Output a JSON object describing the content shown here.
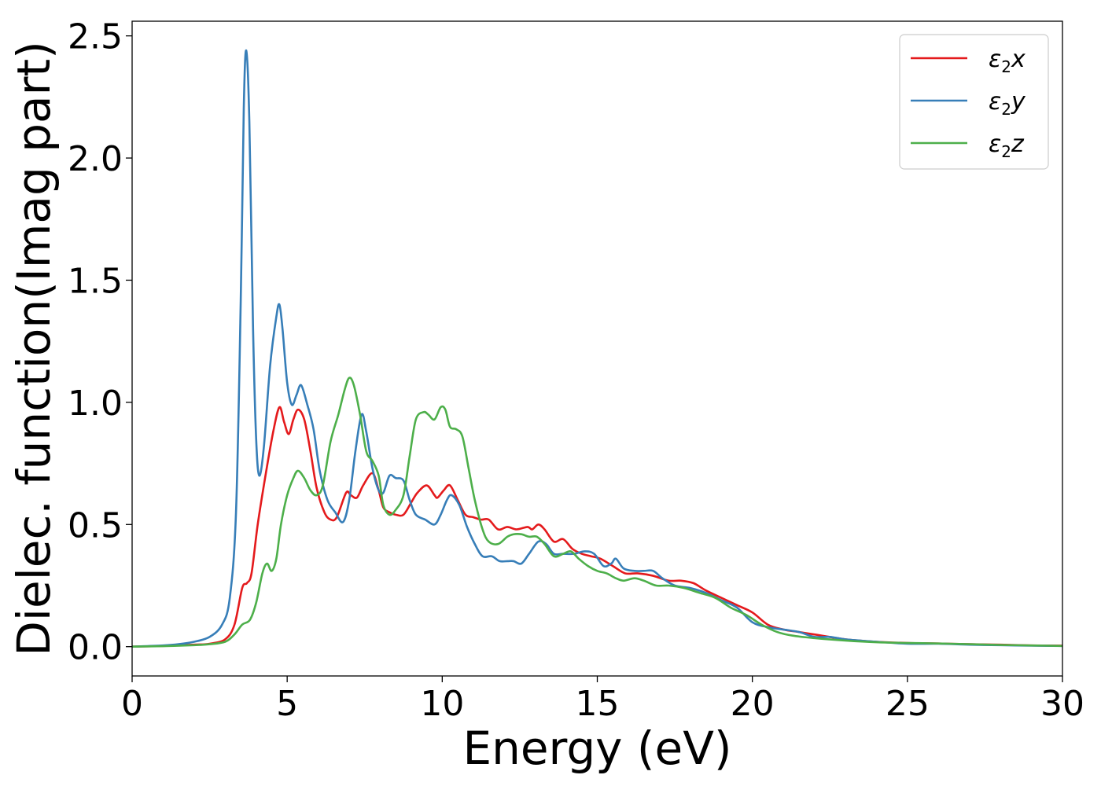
{
  "chart_data": {
    "type": "line",
    "title": "",
    "xlabel": "Energy (eV)",
    "ylabel": "Dielec. function(Imag part)",
    "xlim": [
      0,
      30
    ],
    "ylim": [
      -0.12,
      2.56
    ],
    "xticks": [
      0,
      5,
      10,
      15,
      20,
      25,
      30
    ],
    "xtick_labels": [
      "0",
      "5",
      "10",
      "15",
      "20",
      "25",
      "30"
    ],
    "yticks": [
      0.0,
      0.5,
      1.0,
      1.5,
      2.0,
      2.5
    ],
    "ytick_labels": [
      "0.0",
      "0.5",
      "1.0",
      "1.5",
      "2.0",
      "2.5"
    ],
    "grid": false,
    "legend_position": "top-right",
    "series": [
      {
        "name": "ε2x",
        "legend": {
          "symbol": "ε",
          "sub": "2",
          "var": "x"
        },
        "color": "#e41a1c",
        "points": [
          [
            0,
            0
          ],
          [
            1,
            0.003
          ],
          [
            2,
            0.008
          ],
          [
            2.5,
            0.012
          ],
          [
            3,
            0.03
          ],
          [
            3.3,
            0.09
          ],
          [
            3.55,
            0.24
          ],
          [
            3.7,
            0.26
          ],
          [
            3.85,
            0.3
          ],
          [
            4.05,
            0.5
          ],
          [
            4.3,
            0.7
          ],
          [
            4.55,
            0.88
          ],
          [
            4.75,
            0.98
          ],
          [
            4.9,
            0.92
          ],
          [
            5.05,
            0.87
          ],
          [
            5.2,
            0.93
          ],
          [
            5.35,
            0.97
          ],
          [
            5.55,
            0.93
          ],
          [
            5.75,
            0.8
          ],
          [
            5.95,
            0.65
          ],
          [
            6.2,
            0.55
          ],
          [
            6.4,
            0.52
          ],
          [
            6.6,
            0.53
          ],
          [
            6.9,
            0.63
          ],
          [
            7.05,
            0.62
          ],
          [
            7.25,
            0.61
          ],
          [
            7.45,
            0.66
          ],
          [
            7.75,
            0.71
          ],
          [
            7.95,
            0.64
          ],
          [
            8.1,
            0.57
          ],
          [
            8.3,
            0.55
          ],
          [
            8.5,
            0.54
          ],
          [
            8.75,
            0.54
          ],
          [
            9,
            0.59
          ],
          [
            9.2,
            0.63
          ],
          [
            9.5,
            0.66
          ],
          [
            9.75,
            0.62
          ],
          [
            9.85,
            0.61
          ],
          [
            10.05,
            0.64
          ],
          [
            10.25,
            0.66
          ],
          [
            10.5,
            0.6
          ],
          [
            10.75,
            0.54
          ],
          [
            11,
            0.53
          ],
          [
            11.25,
            0.52
          ],
          [
            11.5,
            0.52
          ],
          [
            11.8,
            0.48
          ],
          [
            12.1,
            0.49
          ],
          [
            12.4,
            0.48
          ],
          [
            12.75,
            0.49
          ],
          [
            12.9,
            0.48
          ],
          [
            13.1,
            0.5
          ],
          [
            13.3,
            0.48
          ],
          [
            13.6,
            0.43
          ],
          [
            13.9,
            0.44
          ],
          [
            14.2,
            0.4
          ],
          [
            14.5,
            0.38
          ],
          [
            14.8,
            0.37
          ],
          [
            15.1,
            0.36
          ],
          [
            15.5,
            0.33
          ],
          [
            15.9,
            0.3
          ],
          [
            16.3,
            0.3
          ],
          [
            16.8,
            0.29
          ],
          [
            17.3,
            0.27
          ],
          [
            17.7,
            0.27
          ],
          [
            18.1,
            0.26
          ],
          [
            18.5,
            0.23
          ],
          [
            19,
            0.2
          ],
          [
            19.5,
            0.17
          ],
          [
            20,
            0.14
          ],
          [
            20.5,
            0.09
          ],
          [
            21,
            0.07
          ],
          [
            21.5,
            0.06
          ],
          [
            22,
            0.05
          ],
          [
            23,
            0.03
          ],
          [
            24,
            0.02
          ],
          [
            25,
            0.015
          ],
          [
            26,
            0.013
          ],
          [
            27,
            0.01
          ],
          [
            28,
            0.008
          ],
          [
            29,
            0.005
          ],
          [
            30,
            0.004
          ]
        ]
      },
      {
        "name": "ε2y",
        "legend": {
          "symbol": "ε",
          "sub": "2",
          "var": "y"
        },
        "color": "#377eb8",
        "points": [
          [
            0,
            0
          ],
          [
            1,
            0.005
          ],
          [
            1.5,
            0.01
          ],
          [
            2,
            0.02
          ],
          [
            2.5,
            0.04
          ],
          [
            2.9,
            0.09
          ],
          [
            3.15,
            0.2
          ],
          [
            3.35,
            0.55
          ],
          [
            3.5,
            1.4
          ],
          [
            3.6,
            2.2
          ],
          [
            3.68,
            2.44
          ],
          [
            3.78,
            2.15
          ],
          [
            3.9,
            1.3
          ],
          [
            4.0,
            0.85
          ],
          [
            4.1,
            0.7
          ],
          [
            4.25,
            0.82
          ],
          [
            4.45,
            1.15
          ],
          [
            4.65,
            1.35
          ],
          [
            4.75,
            1.4
          ],
          [
            4.85,
            1.3
          ],
          [
            5.0,
            1.08
          ],
          [
            5.15,
            0.99
          ],
          [
            5.3,
            1.03
          ],
          [
            5.45,
            1.07
          ],
          [
            5.65,
            0.99
          ],
          [
            5.85,
            0.89
          ],
          [
            6.05,
            0.72
          ],
          [
            6.3,
            0.6
          ],
          [
            6.55,
            0.55
          ],
          [
            6.8,
            0.51
          ],
          [
            7.0,
            0.6
          ],
          [
            7.2,
            0.8
          ],
          [
            7.4,
            0.95
          ],
          [
            7.55,
            0.88
          ],
          [
            7.75,
            0.73
          ],
          [
            7.95,
            0.64
          ],
          [
            8.1,
            0.63
          ],
          [
            8.3,
            0.7
          ],
          [
            8.5,
            0.69
          ],
          [
            8.75,
            0.68
          ],
          [
            8.95,
            0.6
          ],
          [
            9.15,
            0.54
          ],
          [
            9.45,
            0.52
          ],
          [
            9.75,
            0.5
          ],
          [
            9.95,
            0.54
          ],
          [
            10.15,
            0.6
          ],
          [
            10.3,
            0.62
          ],
          [
            10.55,
            0.58
          ],
          [
            10.8,
            0.49
          ],
          [
            11.05,
            0.42
          ],
          [
            11.3,
            0.37
          ],
          [
            11.6,
            0.37
          ],
          [
            11.85,
            0.35
          ],
          [
            12.1,
            0.35
          ],
          [
            12.3,
            0.35
          ],
          [
            12.55,
            0.34
          ],
          [
            12.8,
            0.38
          ],
          [
            13.1,
            0.43
          ],
          [
            13.35,
            0.42
          ],
          [
            13.6,
            0.38
          ],
          [
            13.9,
            0.38
          ],
          [
            14.25,
            0.38
          ],
          [
            14.6,
            0.39
          ],
          [
            14.9,
            0.38
          ],
          [
            15.2,
            0.33
          ],
          [
            15.45,
            0.34
          ],
          [
            15.6,
            0.36
          ],
          [
            15.85,
            0.32
          ],
          [
            16.2,
            0.31
          ],
          [
            16.5,
            0.31
          ],
          [
            16.8,
            0.31
          ],
          [
            17.1,
            0.28
          ],
          [
            17.5,
            0.25
          ],
          [
            18,
            0.24
          ],
          [
            18.5,
            0.22
          ],
          [
            19,
            0.19
          ],
          [
            19.5,
            0.16
          ],
          [
            20,
            0.1
          ],
          [
            20.5,
            0.08
          ],
          [
            21,
            0.07
          ],
          [
            21.5,
            0.06
          ],
          [
            22,
            0.04
          ],
          [
            22.5,
            0.04
          ],
          [
            23,
            0.03
          ],
          [
            24,
            0.02
          ],
          [
            25,
            0.012
          ],
          [
            26,
            0.012
          ],
          [
            27,
            0.008
          ],
          [
            28,
            0.006
          ],
          [
            29,
            0.004
          ],
          [
            30,
            0.003
          ]
        ]
      },
      {
        "name": "ε2z",
        "legend": {
          "symbol": "ε",
          "sub": "2",
          "var": "z"
        },
        "color": "#4daf4a",
        "points": [
          [
            0,
            0
          ],
          [
            1,
            0.002
          ],
          [
            2,
            0.006
          ],
          [
            2.5,
            0.01
          ],
          [
            3,
            0.02
          ],
          [
            3.3,
            0.05
          ],
          [
            3.55,
            0.09
          ],
          [
            3.8,
            0.11
          ],
          [
            4.0,
            0.18
          ],
          [
            4.2,
            0.3
          ],
          [
            4.35,
            0.34
          ],
          [
            4.5,
            0.31
          ],
          [
            4.65,
            0.36
          ],
          [
            4.8,
            0.5
          ],
          [
            5.0,
            0.62
          ],
          [
            5.2,
            0.69
          ],
          [
            5.35,
            0.72
          ],
          [
            5.55,
            0.69
          ],
          [
            5.75,
            0.64
          ],
          [
            5.95,
            0.62
          ],
          [
            6.15,
            0.66
          ],
          [
            6.4,
            0.84
          ],
          [
            6.65,
            0.95
          ],
          [
            6.85,
            1.05
          ],
          [
            7.0,
            1.1
          ],
          [
            7.15,
            1.07
          ],
          [
            7.35,
            0.95
          ],
          [
            7.55,
            0.8
          ],
          [
            7.75,
            0.76
          ],
          [
            7.95,
            0.7
          ],
          [
            8.1,
            0.58
          ],
          [
            8.3,
            0.54
          ],
          [
            8.5,
            0.56
          ],
          [
            8.75,
            0.62
          ],
          [
            8.95,
            0.78
          ],
          [
            9.15,
            0.93
          ],
          [
            9.4,
            0.96
          ],
          [
            9.55,
            0.95
          ],
          [
            9.75,
            0.93
          ],
          [
            9.95,
            0.98
          ],
          [
            10.1,
            0.97
          ],
          [
            10.25,
            0.9
          ],
          [
            10.45,
            0.89
          ],
          [
            10.65,
            0.86
          ],
          [
            10.85,
            0.73
          ],
          [
            11.05,
            0.6
          ],
          [
            11.3,
            0.48
          ],
          [
            11.5,
            0.43
          ],
          [
            11.8,
            0.42
          ],
          [
            12.1,
            0.45
          ],
          [
            12.3,
            0.46
          ],
          [
            12.55,
            0.46
          ],
          [
            12.8,
            0.45
          ],
          [
            13.05,
            0.45
          ],
          [
            13.3,
            0.42
          ],
          [
            13.6,
            0.37
          ],
          [
            13.9,
            0.38
          ],
          [
            14.15,
            0.39
          ],
          [
            14.4,
            0.36
          ],
          [
            14.7,
            0.33
          ],
          [
            15.0,
            0.31
          ],
          [
            15.3,
            0.3
          ],
          [
            15.6,
            0.28
          ],
          [
            15.85,
            0.27
          ],
          [
            16.2,
            0.28
          ],
          [
            16.5,
            0.27
          ],
          [
            16.9,
            0.25
          ],
          [
            17.3,
            0.25
          ],
          [
            17.8,
            0.24
          ],
          [
            18.3,
            0.22
          ],
          [
            18.8,
            0.2
          ],
          [
            19.3,
            0.16
          ],
          [
            19.8,
            0.13
          ],
          [
            20.3,
            0.09
          ],
          [
            20.8,
            0.06
          ],
          [
            21.3,
            0.045
          ],
          [
            22,
            0.035
          ],
          [
            23,
            0.025
          ],
          [
            24,
            0.018
          ],
          [
            25,
            0.015
          ],
          [
            26,
            0.013
          ],
          [
            27,
            0.01
          ],
          [
            28,
            0.007
          ],
          [
            29,
            0.005
          ],
          [
            30,
            0.003
          ]
        ]
      }
    ]
  }
}
